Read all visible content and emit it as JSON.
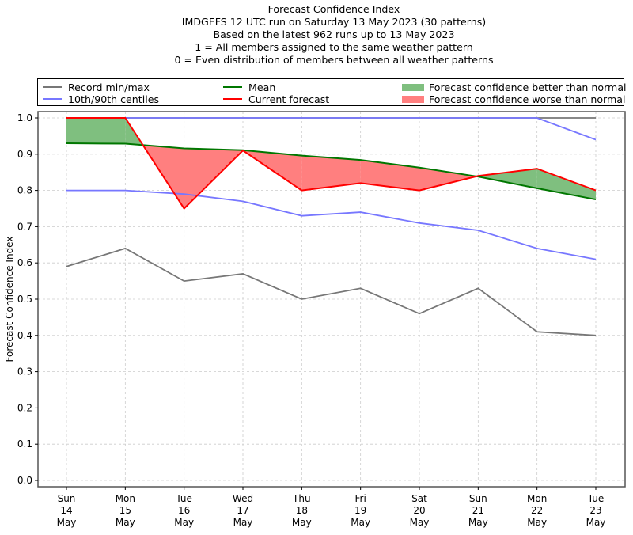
{
  "chart_data": {
    "type": "line",
    "title": "Forecast Confidence Index",
    "subtitle_lines": [
      "IMDGEFS 12 UTC run on Saturday 13 May 2023 (30 patterns)",
      "Based on the latest 962 runs up to 13 May 2023",
      "1 = All members assigned to the same weather pattern",
      "0 = Even distribution of members between all weather patterns"
    ],
    "xlabel": "",
    "ylabel": "Forecast Confidence Index",
    "ylim": [
      0.0,
      1.0
    ],
    "yticks": [
      "0.0",
      "0.1",
      "0.2",
      "0.3",
      "0.4",
      "0.5",
      "0.6",
      "0.7",
      "0.8",
      "0.9",
      "1.0"
    ],
    "grid": true,
    "legend_position": "top (above plot, 3 columns)",
    "categories": [
      [
        "Sun",
        "14",
        "May"
      ],
      [
        "Mon",
        "15",
        "May"
      ],
      [
        "Tue",
        "16",
        "May"
      ],
      [
        "Wed",
        "17",
        "May"
      ],
      [
        "Thu",
        "18",
        "May"
      ],
      [
        "Fri",
        "19",
        "May"
      ],
      [
        "Sat",
        "20",
        "May"
      ],
      [
        "Sun",
        "21",
        "May"
      ],
      [
        "Mon",
        "22",
        "May"
      ],
      [
        "Tue",
        "23",
        "May"
      ]
    ],
    "series": [
      {
        "name": "Record max",
        "legend": "Record min/max",
        "color": "#777777",
        "values": [
          1.0,
          1.0,
          1.0,
          1.0,
          1.0,
          1.0,
          1.0,
          1.0,
          1.0,
          1.0
        ]
      },
      {
        "name": "Record min",
        "legend": "Record min/max",
        "color": "#777777",
        "values": [
          0.59,
          0.64,
          0.55,
          0.57,
          0.5,
          0.53,
          0.46,
          0.53,
          0.41,
          0.4
        ]
      },
      {
        "name": "90th centile",
        "legend": "10th/90th centiles",
        "color": "#7777ff",
        "values": [
          1.0,
          1.0,
          1.0,
          1.0,
          1.0,
          1.0,
          1.0,
          1.0,
          1.0,
          0.94
        ]
      },
      {
        "name": "10th centile",
        "legend": "10th/90th centiles",
        "color": "#7777ff",
        "values": [
          0.8,
          0.8,
          0.79,
          0.77,
          0.73,
          0.74,
          0.71,
          0.69,
          0.64,
          0.61
        ]
      },
      {
        "name": "Mean",
        "legend": "Mean",
        "color": "#007700",
        "values": [
          0.93,
          0.929,
          0.916,
          0.911,
          0.896,
          0.884,
          0.863,
          0.838,
          0.806,
          0.775
        ]
      },
      {
        "name": "Current forecast",
        "legend": "Current forecast",
        "color": "#ff0000",
        "values": [
          1.0,
          1.0,
          0.75,
          0.91,
          0.8,
          0.82,
          0.8,
          0.84,
          0.86,
          0.8
        ]
      }
    ],
    "fills": [
      {
        "name": "Forecast confidence better than normal",
        "color": "#7fbf7f",
        "condition": "current > mean"
      },
      {
        "name": "Forecast confidence worse than normal",
        "color": "#ff7f7f",
        "condition": "current < mean"
      }
    ]
  },
  "legend": {
    "record": "Record min/max",
    "centiles": "10th/90th centiles",
    "mean": "Mean",
    "current": "Current forecast",
    "better": "Forecast confidence better than normal",
    "worse": "Forecast confidence worse than normal"
  }
}
